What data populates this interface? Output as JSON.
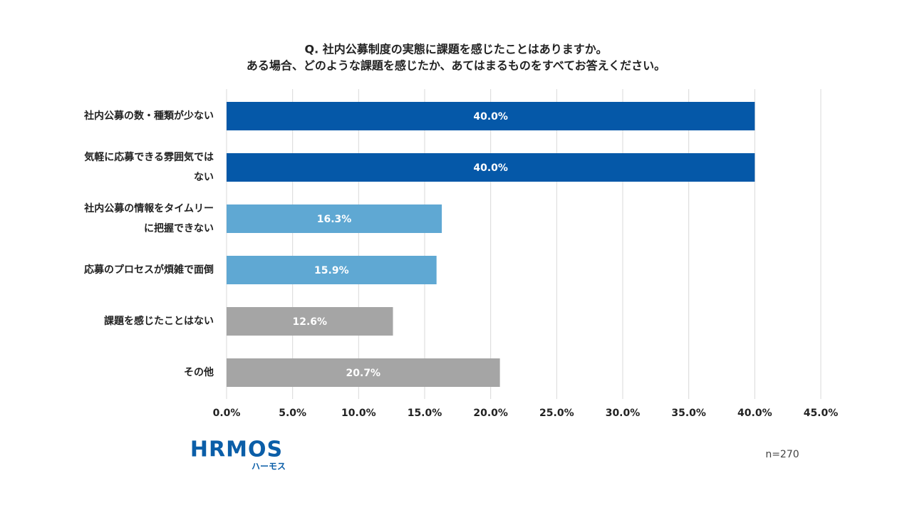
{
  "chart_data": {
    "type": "bar",
    "orientation": "horizontal",
    "title": [
      "Q.  社内公募制度の実態に課題を感じたことはありますか。",
      "ある場合、どのような課題を感じたか、あてはまるものをすべてお答えください。"
    ],
    "categories": [
      "社内公募の数・種類が少ない",
      "気軽に応募できる雰囲気では\nない",
      "社内公募の情報をタイムリー\nに把握できない",
      "応募のプロセスが煩雑で面倒",
      "課題を感じたことはない",
      "その他"
    ],
    "values": [
      40.0,
      40.0,
      16.3,
      15.9,
      12.6,
      20.7
    ],
    "value_labels": [
      "40.0%",
      "40.0%",
      "16.3%",
      "15.9%",
      "12.6%",
      "20.7%"
    ],
    "colors": [
      "#0558a8",
      "#0558a8",
      "#5fa8d3",
      "#5fa8d3",
      "#a5a5a5",
      "#a5a5a5"
    ],
    "xlim": [
      0,
      45
    ],
    "xticks": [
      {
        "value": 0,
        "label": "0.0%"
      },
      {
        "value": 5,
        "label": "5.0%"
      },
      {
        "value": 10,
        "label": "10.0%"
      },
      {
        "value": 15,
        "label": "15.0%"
      },
      {
        "value": 20,
        "label": "20.0%"
      },
      {
        "value": 25,
        "label": "25.0%"
      },
      {
        "value": 30,
        "label": "30.0%"
      },
      {
        "value": 35,
        "label": "35.0%"
      },
      {
        "value": 40,
        "label": "40.0%"
      },
      {
        "value": 45,
        "label": "45.0%"
      }
    ],
    "grid": true,
    "note": "n=270"
  },
  "logo": {
    "text": "HRMOS",
    "subtext": "ハーモス"
  }
}
